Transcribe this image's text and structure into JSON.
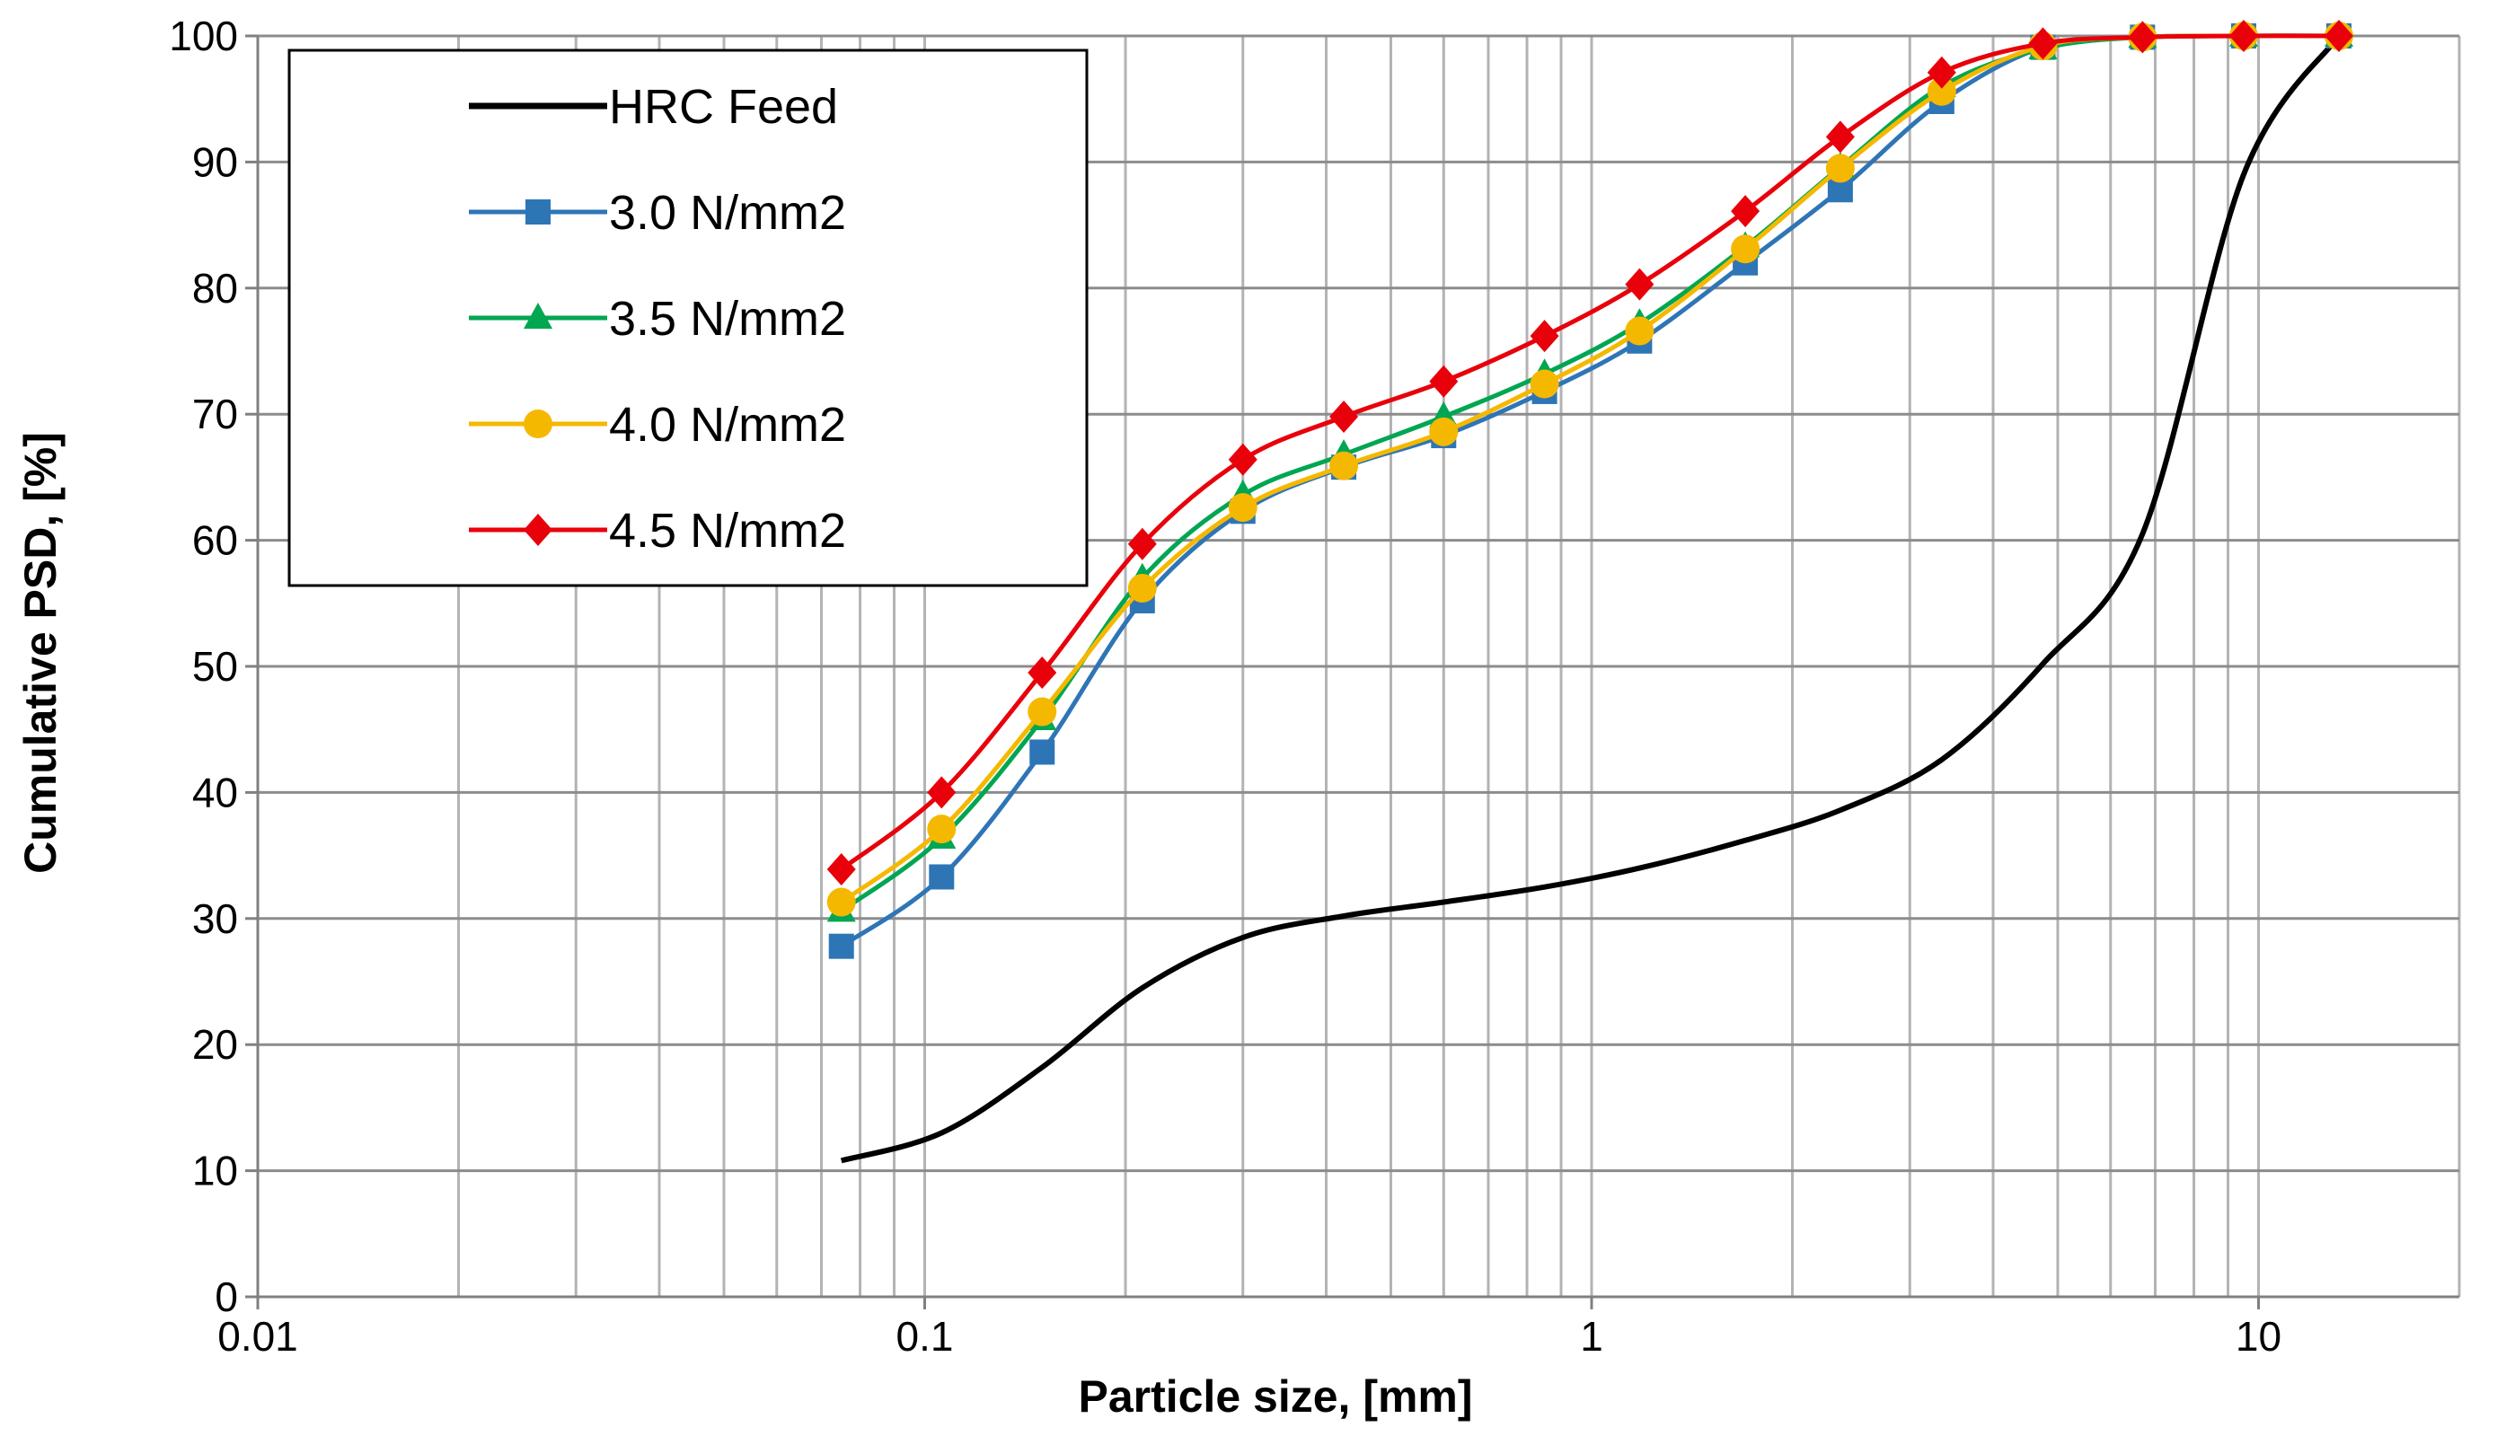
{
  "chart_data": {
    "type": "line",
    "title": "",
    "xlabel": "Particle size, [mm]",
    "ylabel": "Cumulative PSD, [%]",
    "xscale": "log",
    "xlim": [
      0.01,
      20
    ],
    "ylim": [
      0,
      100
    ],
    "grid": true,
    "legend_position": "top-left",
    "x_tick_labels": [
      {
        "value": 0.01,
        "label": "0.01"
      },
      {
        "value": 0.1,
        "label": "0.1"
      },
      {
        "value": 1,
        "label": "1"
      },
      {
        "value": 10,
        "label": "10"
      }
    ],
    "y_tick_labels": [
      {
        "value": 0,
        "label": "0"
      },
      {
        "value": 10,
        "label": "10"
      },
      {
        "value": 20,
        "label": "20"
      },
      {
        "value": 30,
        "label": "30"
      },
      {
        "value": 40,
        "label": "40"
      },
      {
        "value": 50,
        "label": "50"
      },
      {
        "value": 60,
        "label": "60"
      },
      {
        "value": 70,
        "label": "70"
      },
      {
        "value": 80,
        "label": "80"
      },
      {
        "value": 90,
        "label": "90"
      },
      {
        "value": 100,
        "label": "100"
      }
    ],
    "sieve_sizes_mm": [
      0.075,
      0.106,
      0.15,
      0.212,
      0.3,
      0.425,
      0.6,
      0.85,
      1.18,
      1.7,
      2.36,
      3.35,
      4.75,
      6.7,
      9.5,
      13.2
    ],
    "series": [
      {
        "name": "HRC Feed",
        "color": "#000000",
        "marker": "none",
        "x": [
          0.075,
          0.106,
          0.15,
          0.212,
          0.3,
          0.425,
          0.6,
          0.85,
          1.18,
          1.7,
          2.36,
          3.35,
          4.75,
          6.7,
          9.5,
          13.2
        ],
        "y": [
          10.8,
          13.0,
          18.2,
          24.5,
          28.5,
          30.2,
          31.3,
          32.5,
          34.0,
          36.2,
          38.6,
          42.6,
          50.2,
          60.5,
          89.0,
          100.0
        ]
      },
      {
        "name": "3.0 N/mm2",
        "color": "#2E75B6",
        "marker": "square",
        "x": [
          0.075,
          0.106,
          0.15,
          0.212,
          0.3,
          0.425,
          0.6,
          0.85,
          1.18,
          1.7,
          2.36,
          3.35,
          4.75,
          6.7,
          9.5,
          13.2
        ],
        "y": [
          27.8,
          33.3,
          43.2,
          55.2,
          62.3,
          65.8,
          68.3,
          71.8,
          75.8,
          82.0,
          87.8,
          94.8,
          99.1,
          99.9,
          100.0,
          100.0
        ]
      },
      {
        "name": "3.5 N/mm2",
        "color": "#00A651",
        "marker": "triangle",
        "x": [
          0.075,
          0.106,
          0.15,
          0.212,
          0.3,
          0.425,
          0.6,
          0.85,
          1.18,
          1.7,
          2.36,
          3.35,
          4.75,
          6.7,
          9.5,
          13.2
        ],
        "y": [
          30.6,
          36.4,
          45.8,
          57.0,
          63.6,
          66.8,
          69.8,
          73.2,
          77.2,
          83.3,
          89.6,
          96.0,
          99.0,
          99.9,
          100.0,
          100.0
        ]
      },
      {
        "name": "4.0 N/mm2",
        "color": "#F5B800",
        "marker": "circle",
        "x": [
          0.075,
          0.106,
          0.15,
          0.212,
          0.3,
          0.425,
          0.6,
          0.85,
          1.18,
          1.7,
          2.36,
          3.35,
          4.75,
          6.7,
          9.5,
          13.2
        ],
        "y": [
          31.3,
          37.1,
          46.4,
          56.2,
          62.6,
          65.9,
          68.6,
          72.4,
          76.6,
          83.1,
          89.5,
          95.6,
          99.2,
          99.9,
          100.0,
          100.0
        ]
      },
      {
        "name": "4.5 N/mm2",
        "color": "#E8000B",
        "marker": "diamond",
        "x": [
          0.075,
          0.106,
          0.15,
          0.212,
          0.3,
          0.425,
          0.6,
          0.85,
          1.18,
          1.7,
          2.36,
          3.35,
          4.75,
          6.7,
          9.5,
          13.2
        ],
        "y": [
          33.9,
          40.0,
          49.5,
          59.7,
          66.4,
          69.8,
          72.6,
          76.2,
          80.3,
          86.1,
          92.0,
          97.1,
          99.4,
          99.9,
          100.0,
          100.0
        ]
      }
    ]
  }
}
